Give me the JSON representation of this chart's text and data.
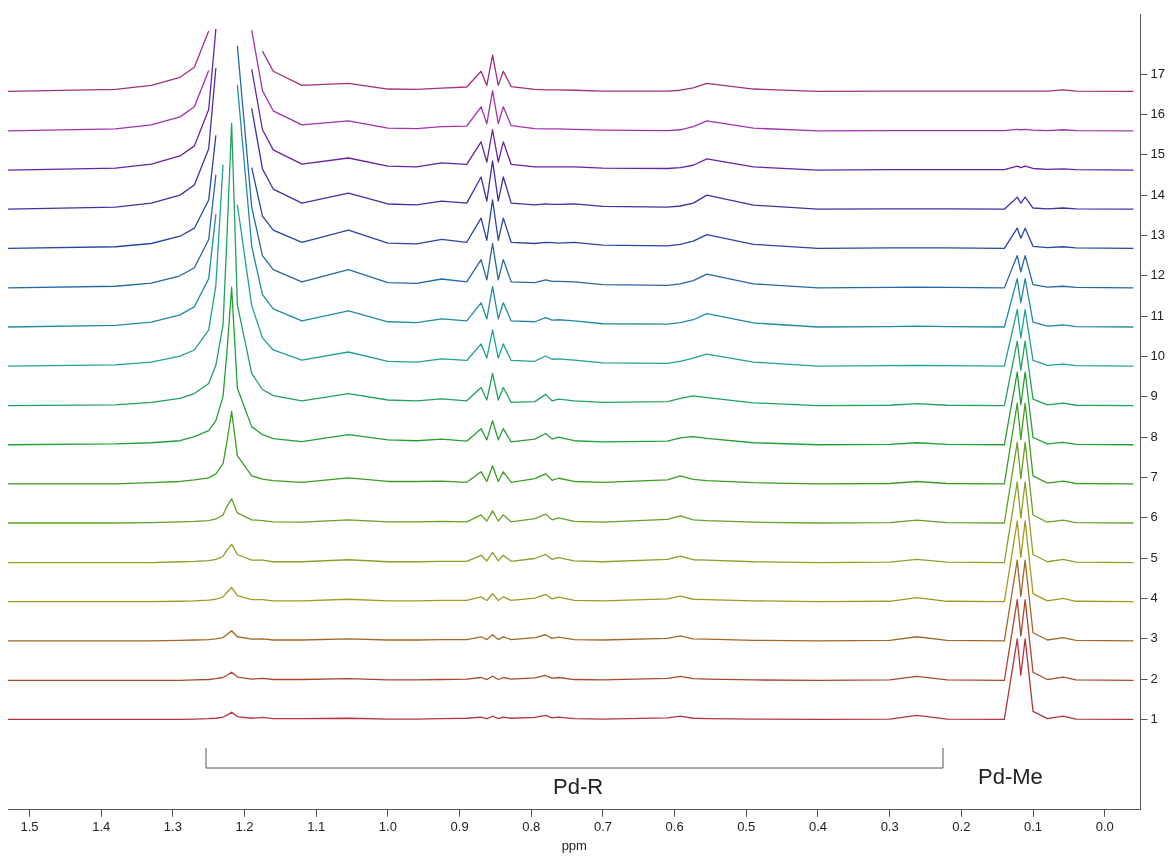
{
  "chart_data": {
    "type": "line",
    "xlabel": "ppm",
    "grid": false,
    "legend": false,
    "marker": "none",
    "line_style": "solid",
    "xlim": [
      1.53,
      -0.05
    ],
    "ylim": [
      -1.24,
      18.49
    ],
    "xticks": [
      1.5,
      1.4,
      1.3,
      1.2,
      1.1,
      {
        "value": 1,
        "label": "1.0"
      },
      0.9,
      0.8,
      0.7,
      0.6,
      0.5,
      0.4,
      0.3,
      0.2,
      0.1,
      {
        "value": 0,
        "label": "0.0"
      }
    ],
    "yticks": [
      1,
      2,
      3,
      4,
      5,
      6,
      7,
      8,
      9,
      10,
      11,
      12,
      13,
      14,
      15,
      16,
      17
    ],
    "x": [
      1.53,
      1.38,
      1.33,
      1.29,
      1.27,
      1.25,
      1.24,
      1.23,
      1.225,
      1.218,
      1.21,
      1.19,
      1.175,
      1.16,
      1.12,
      1.055,
      1.0,
      0.96,
      0.925,
      0.89,
      0.87,
      0.862,
      0.854,
      0.846,
      0.839,
      0.828,
      0.795,
      0.78,
      0.771,
      0.762,
      0.74,
      0.7,
      0.61,
      0.592,
      0.574,
      0.555,
      0.49,
      0.4,
      0.3,
      0.262,
      0.22,
      0.14,
      0.122,
      0.117,
      0.111,
      0.1,
      0.08,
      0.058,
      0.04,
      -0.04
    ],
    "annotations": [
      "Pd-R",
      "Pd-Me"
    ],
    "series": [
      {
        "color": "#b3343c",
        "values": [
          1,
          1,
          1,
          1,
          1.01,
          1.02,
          1.03,
          1.06,
          1.1,
          1.18,
          1.07,
          1.03,
          1.05,
          1.02,
          1.02,
          1.03,
          1.01,
          1.01,
          1.02,
          1.03,
          1.06,
          1.02,
          1.08,
          1.02,
          1.06,
          1.03,
          1.05,
          1.1,
          1.04,
          1.06,
          1.02,
          1.01,
          1.04,
          1.08,
          1.03,
          1.02,
          1.01,
          1,
          1.01,
          1.1,
          1.01,
          1,
          3.0,
          2.1,
          3.0,
          1.2,
          1.02,
          1.08,
          1.01,
          1
        ]
      },
      {
        "color": "#a8482e",
        "values": [
          1.97,
          1.97,
          1.97,
          1.97,
          1.98,
          1.99,
          2.01,
          2.04,
          2.09,
          2.17,
          2.05,
          2.0,
          2.02,
          1.99,
          1.99,
          2.01,
          1.98,
          1.98,
          1.99,
          2.0,
          2.04,
          1.99,
          2.07,
          1.99,
          2.04,
          2.0,
          2.03,
          2.09,
          2.02,
          2.04,
          1.99,
          1.98,
          2.02,
          2.07,
          2.01,
          2.0,
          1.98,
          1.97,
          1.98,
          2.07,
          1.98,
          1.97,
          3.97,
          3.07,
          3.97,
          2.17,
          1.99,
          2.05,
          1.98,
          1.97
        ]
      },
      {
        "color": "#a0682a",
        "values": [
          2.95,
          2.95,
          2.95,
          2.96,
          2.97,
          2.98,
          3.0,
          3.03,
          3.1,
          3.2,
          3.05,
          2.99,
          3.0,
          2.97,
          2.97,
          3.0,
          2.97,
          2.97,
          2.98,
          2.98,
          3.05,
          2.98,
          3.1,
          2.98,
          3.05,
          2.98,
          3.03,
          3.1,
          3.01,
          3.04,
          2.98,
          2.97,
          3.01,
          3.07,
          3.0,
          2.99,
          2.96,
          2.95,
          2.96,
          3.05,
          2.96,
          2.95,
          4.95,
          4.05,
          4.95,
          3.15,
          2.97,
          3.03,
          2.96,
          2.95
        ]
      },
      {
        "color": "#a09a22",
        "values": [
          3.92,
          3.92,
          3.92,
          3.93,
          3.94,
          3.96,
          3.98,
          4.04,
          4.14,
          4.27,
          4.07,
          3.97,
          3.97,
          3.94,
          3.94,
          3.98,
          3.94,
          3.94,
          3.95,
          3.95,
          4.04,
          3.95,
          4.12,
          3.95,
          4.04,
          3.95,
          4.01,
          4.1,
          3.99,
          4.03,
          3.95,
          3.94,
          3.99,
          4.06,
          3.98,
          3.97,
          3.94,
          3.92,
          3.93,
          4.02,
          3.93,
          3.92,
          5.92,
          5.02,
          5.92,
          4.12,
          3.94,
          4.0,
          3.93,
          3.92
        ]
      },
      {
        "color": "#8aa026",
        "values": [
          4.89,
          4.89,
          4.89,
          4.91,
          4.92,
          4.94,
          4.97,
          5.04,
          5.19,
          5.34,
          5.09,
          4.95,
          4.95,
          4.91,
          4.91,
          4.96,
          4.91,
          4.91,
          4.92,
          4.92,
          5.07,
          4.93,
          5.14,
          4.93,
          5.07,
          4.92,
          4.99,
          5.09,
          4.97,
          5.01,
          4.93,
          4.91,
          4.97,
          5.05,
          4.96,
          4.95,
          4.91,
          4.89,
          4.9,
          4.97,
          4.9,
          4.89,
          6.89,
          5.99,
          6.89,
          5.09,
          4.91,
          4.97,
          4.9,
          4.89
        ]
      },
      {
        "color": "#66a026",
        "values": [
          5.87,
          5.87,
          5.88,
          5.9,
          5.91,
          5.93,
          5.97,
          6.07,
          6.27,
          6.47,
          6.12,
          5.95,
          5.93,
          5.9,
          5.89,
          5.95,
          5.9,
          5.9,
          5.91,
          5.9,
          6.07,
          5.92,
          6.17,
          5.92,
          6.07,
          5.9,
          5.98,
          6.09,
          5.95,
          6.0,
          5.91,
          5.89,
          5.96,
          6.05,
          5.95,
          5.93,
          5.89,
          5.87,
          5.88,
          5.94,
          5.88,
          5.87,
          7.87,
          6.97,
          7.87,
          6.07,
          5.89,
          5.94,
          5.88,
          5.87
        ]
      },
      {
        "color": "#3c9c24",
        "values": [
          6.84,
          6.84,
          6.87,
          6.9,
          6.94,
          6.99,
          7.09,
          7.34,
          7.84,
          8.64,
          7.54,
          7.04,
          6.96,
          6.92,
          6.88,
          6.99,
          6.9,
          6.9,
          6.91,
          6.88,
          7.14,
          6.9,
          7.29,
          6.9,
          7.14,
          6.88,
          6.97,
          7.09,
          6.93,
          6.98,
          6.9,
          6.88,
          6.94,
          7.04,
          6.95,
          6.92,
          6.87,
          6.84,
          6.85,
          6.9,
          6.85,
          6.84,
          8.84,
          7.94,
          8.84,
          7.04,
          6.86,
          6.91,
          6.85,
          6.84
        ]
      },
      {
        "color": "#22a034",
        "values": [
          7.81,
          7.83,
          7.86,
          7.91,
          8.01,
          8.16,
          8.41,
          9.01,
          10.01,
          11.71,
          9.21,
          8.26,
          8.06,
          7.96,
          7.89,
          8.06,
          7.93,
          7.91,
          7.95,
          7.9,
          8.21,
          7.93,
          8.41,
          7.93,
          8.21,
          7.88,
          7.95,
          8.09,
          7.95,
          8.0,
          7.91,
          7.88,
          7.9,
          7.98,
          8.01,
          7.97,
          7.86,
          7.81,
          7.82,
          7.86,
          7.82,
          7.81,
          9.61,
          8.8,
          9.61,
          7.99,
          7.83,
          7.87,
          7.82,
          7.81
        ]
      },
      {
        "color": "#22a060",
        "values": [
          8.78,
          8.8,
          8.86,
          8.96,
          9.08,
          9.33,
          9.78,
          10.78,
          12.78,
          15.78,
          11.28,
          9.58,
          9.18,
          9.03,
          8.9,
          9.08,
          8.92,
          8.9,
          8.95,
          8.9,
          9.23,
          8.92,
          9.58,
          8.92,
          9.23,
          8.86,
          8.88,
          9.06,
          8.9,
          8.94,
          8.9,
          8.86,
          8.88,
          8.96,
          9.02,
          8.98,
          8.85,
          8.78,
          8.79,
          8.83,
          8.79,
          8.78,
          10.38,
          9.66,
          10.38,
          8.94,
          8.8,
          8.84,
          8.79,
          8.78
        ]
      },
      {
        "color": "#22a094",
        "values": [
          9.76,
          9.79,
          9.86,
          10.01,
          10.16,
          10.66,
          11.76,
          14.76,
          null,
          null,
          13.76,
          11.26,
          10.46,
          10.16,
          9.91,
          10.11,
          9.88,
          9.86,
          9.94,
          9.9,
          10.31,
          9.96,
          10.66,
          9.96,
          10.31,
          9.9,
          9.88,
          10.01,
          9.93,
          9.94,
          9.91,
          9.84,
          9.83,
          9.88,
          9.96,
          10.06,
          9.86,
          9.76,
          9.77,
          9.78,
          9.77,
          9.76,
          11.16,
          10.46,
          11.16,
          9.9,
          9.78,
          9.81,
          9.77,
          9.76
        ]
      },
      {
        "color": "#228aa4",
        "values": [
          10.73,
          10.77,
          10.85,
          11.03,
          11.23,
          11.93,
          13.53,
          null,
          null,
          null,
          16.73,
          12.73,
          11.53,
          11.18,
          10.88,
          11.13,
          10.86,
          10.84,
          10.93,
          10.88,
          11.33,
          10.93,
          11.73,
          10.93,
          11.33,
          10.88,
          10.86,
          10.96,
          10.9,
          10.91,
          10.88,
          10.81,
          10.8,
          10.84,
          10.91,
          11.06,
          10.83,
          10.73,
          10.74,
          10.75,
          10.74,
          10.73,
          11.93,
          11.33,
          11.93,
          10.85,
          10.75,
          10.78,
          10.74,
          10.73
        ]
      },
      {
        "color": "#2668a4",
        "values": [
          11.7,
          11.74,
          11.82,
          12.0,
          12.2,
          12.9,
          14.5,
          null,
          null,
          null,
          17.7,
          13.7,
          12.5,
          12.15,
          11.85,
          12.15,
          11.83,
          11.81,
          11.92,
          11.85,
          12.4,
          11.9,
          12.8,
          11.9,
          12.4,
          11.85,
          11.83,
          11.9,
          11.86,
          11.86,
          11.85,
          11.78,
          11.76,
          11.8,
          11.88,
          12.04,
          11.8,
          11.7,
          11.71,
          11.72,
          11.71,
          11.7,
          12.5,
          12.1,
          12.5,
          11.78,
          11.72,
          11.74,
          11.71,
          11.7
        ]
      },
      {
        "color": "#2c44a4",
        "values": [
          12.68,
          12.72,
          12.8,
          12.98,
          13.18,
          13.88,
          15.48,
          null,
          null,
          null,
          null,
          14.68,
          13.48,
          13.13,
          12.83,
          13.13,
          12.81,
          12.79,
          12.9,
          12.83,
          13.43,
          12.88,
          13.88,
          12.88,
          13.43,
          12.83,
          12.8,
          12.83,
          12.82,
          12.81,
          12.83,
          12.76,
          12.74,
          12.78,
          12.86,
          13.02,
          12.78,
          12.68,
          12.69,
          12.69,
          12.69,
          12.68,
          13.18,
          12.93,
          13.18,
          12.73,
          12.7,
          12.72,
          12.69,
          12.68
        ]
      },
      {
        "color": "#4230a4",
        "values": [
          13.65,
          13.7,
          13.8,
          14.0,
          14.25,
          15.15,
          17.15,
          null,
          null,
          null,
          null,
          16.15,
          14.65,
          14.15,
          13.8,
          14.05,
          13.78,
          13.76,
          13.85,
          13.8,
          14.45,
          13.85,
          14.85,
          13.85,
          14.45,
          13.8,
          13.76,
          13.78,
          13.77,
          13.77,
          13.78,
          13.72,
          13.7,
          13.73,
          13.8,
          14.0,
          13.75,
          13.65,
          13.66,
          13.66,
          13.66,
          13.65,
          13.95,
          13.8,
          13.95,
          13.68,
          13.66,
          13.68,
          13.66,
          13.65
        ]
      },
      {
        "color": "#6424a4",
        "values": [
          14.62,
          14.67,
          14.77,
          14.97,
          15.22,
          16.12,
          18.12,
          null,
          null,
          null,
          null,
          17.12,
          15.62,
          15.12,
          14.77,
          14.92,
          14.72,
          14.7,
          14.8,
          14.76,
          15.32,
          14.82,
          15.62,
          14.82,
          15.32,
          14.76,
          14.7,
          14.7,
          14.7,
          14.7,
          14.7,
          14.67,
          14.66,
          14.68,
          14.74,
          14.9,
          14.7,
          14.62,
          14.63,
          14.63,
          14.63,
          14.63,
          14.72,
          14.68,
          14.72,
          14.66,
          14.64,
          14.65,
          14.63,
          14.62
        ]
      },
      {
        "color": "#a232b0",
        "values": [
          15.59,
          15.64,
          15.74,
          15.94,
          16.19,
          17.09,
          null,
          null,
          null,
          null,
          null,
          18.09,
          16.59,
          16.09,
          15.74,
          15.84,
          15.66,
          15.65,
          15.7,
          15.71,
          16.19,
          15.77,
          16.59,
          15.77,
          16.19,
          15.72,
          15.65,
          15.64,
          15.64,
          15.64,
          15.63,
          15.61,
          15.6,
          15.62,
          15.7,
          15.84,
          15.66,
          15.59,
          15.6,
          15.6,
          15.6,
          15.6,
          15.63,
          15.62,
          15.63,
          15.61,
          15.6,
          15.62,
          15.6,
          15.59
        ]
      },
      {
        "color": "#a2307e",
        "values": [
          16.57,
          16.62,
          16.72,
          16.92,
          17.17,
          18.07,
          null,
          null,
          null,
          null,
          null,
          null,
          17.57,
          17.07,
          16.72,
          16.77,
          16.63,
          16.62,
          16.65,
          16.68,
          17.07,
          16.72,
          17.47,
          16.72,
          17.07,
          16.69,
          16.62,
          16.61,
          16.61,
          16.61,
          16.6,
          16.58,
          16.58,
          16.6,
          16.66,
          16.77,
          16.63,
          16.57,
          16.58,
          16.58,
          16.58,
          16.58,
          16.58,
          16.58,
          16.58,
          16.58,
          16.58,
          16.61,
          16.58,
          16.57
        ]
      }
    ]
  }
}
